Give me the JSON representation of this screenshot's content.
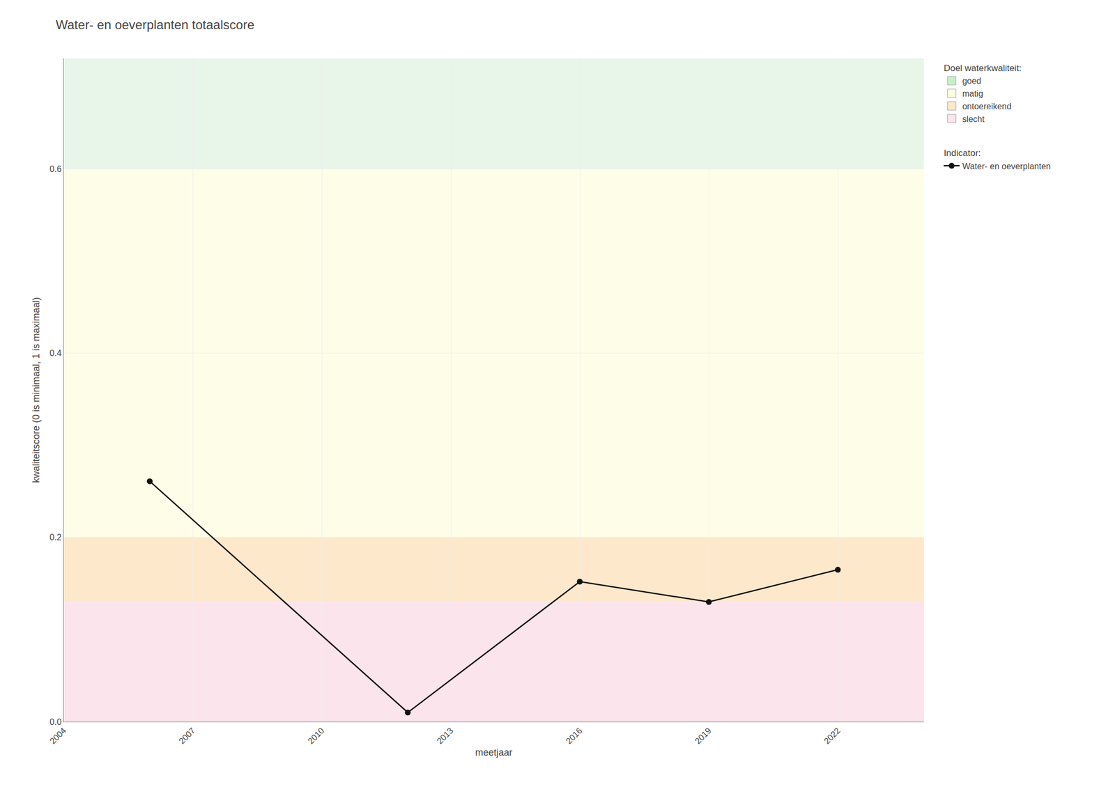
{
  "chart_data": {
    "type": "line",
    "title": "Water- en oeverplanten totaalscore",
    "xlabel": "meetjaar",
    "ylabel": "kwaliteitscore (0 is minimaal, 1 is maximaal)",
    "x": [
      2006,
      2012,
      2016,
      2019,
      2022
    ],
    "series": [
      {
        "name": "Water- en oeverplanten",
        "color": "#111111",
        "marker": "circle",
        "line_style": "solid",
        "values": [
          0.261,
          0.01,
          0.152,
          0.13,
          0.165
        ]
      }
    ],
    "xlim": [
      2004,
      2024
    ],
    "ylim": [
      0.0,
      0.72
    ],
    "xticks": [
      2004,
      2007,
      2010,
      2013,
      2016,
      2019,
      2022
    ],
    "yticks": [
      {
        "value": 0.0,
        "label": "0.0"
      },
      0.2,
      0.4,
      0.6
    ],
    "grid": true,
    "legend": "right",
    "band_legend_title": "Doel waterkwaliteit:",
    "series_legend_title": "Indicator:",
    "bands": [
      {
        "name": "goed",
        "ymin": 0.6,
        "ymax": 0.72,
        "color": "#e8f5e9",
        "legend_color": "#c8f0c8"
      },
      {
        "name": "matig",
        "ymin": 0.2,
        "ymax": 0.6,
        "color": "#fefee8",
        "legend_color": "#fefee0"
      },
      {
        "name": "ontoereikend",
        "ymin": 0.13,
        "ymax": 0.2,
        "color": "#fde8cc",
        "legend_color": "#fde8cc"
      },
      {
        "name": "slecht",
        "ymin": 0.0,
        "ymax": 0.13,
        "color": "#fce4ec",
        "legend_color": "#fce4ec"
      }
    ]
  }
}
